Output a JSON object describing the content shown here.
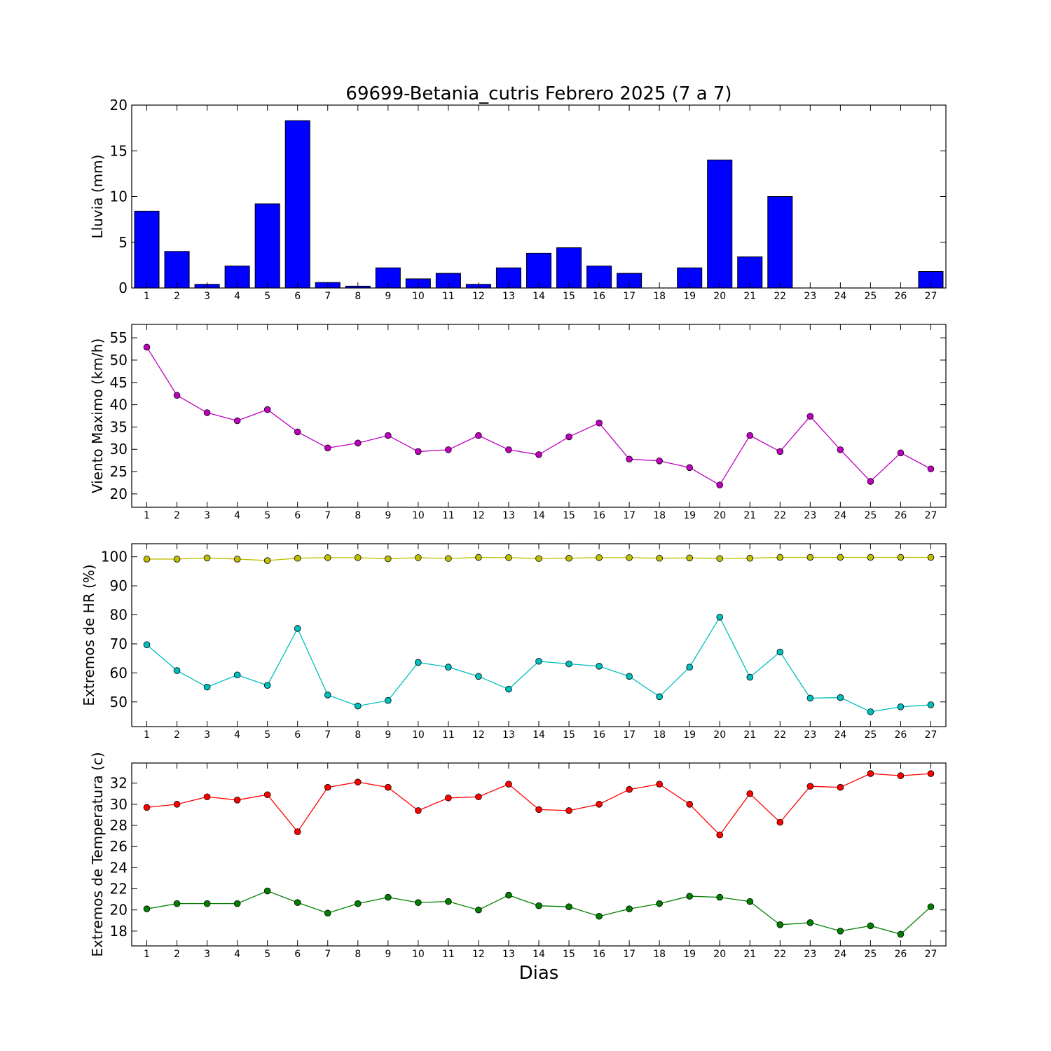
{
  "title": "69699-Betania_cutris Febrero 2025  (7 a 7)",
  "xlabel": "Dias",
  "chart_data": [
    {
      "type": "bar",
      "ylabel": "Lluvia (mm)",
      "x": [
        1,
        2,
        3,
        4,
        5,
        6,
        7,
        8,
        9,
        10,
        11,
        12,
        13,
        14,
        15,
        16,
        17,
        18,
        19,
        20,
        21,
        22,
        23,
        24,
        25,
        26,
        27
      ],
      "ylim": [
        0,
        20
      ],
      "yticks": [
        0,
        5,
        10,
        15,
        20
      ],
      "series": [
        {
          "color": "#0000ff",
          "values": [
            8.4,
            4.0,
            0.4,
            2.4,
            9.2,
            18.3,
            0.6,
            0.2,
            2.2,
            1.0,
            1.6,
            0.4,
            2.2,
            3.8,
            4.4,
            2.4,
            1.6,
            0.0,
            2.2,
            14.0,
            3.4,
            10.0,
            0.0,
            0.0,
            0.0,
            0.0,
            1.8
          ]
        }
      ]
    },
    {
      "type": "line",
      "ylabel": "Viento Maximo (km/h)",
      "x": [
        1,
        2,
        3,
        4,
        5,
        6,
        7,
        8,
        9,
        10,
        11,
        12,
        13,
        14,
        15,
        16,
        17,
        18,
        19,
        20,
        21,
        22,
        23,
        24,
        25,
        26,
        27
      ],
      "ylim": [
        17,
        58
      ],
      "yticks": [
        20,
        25,
        30,
        35,
        40,
        45,
        50,
        55
      ],
      "series": [
        {
          "color": "#bf00bf",
          "values": [
            52.9,
            42.1,
            38.2,
            36.4,
            38.9,
            33.9,
            30.3,
            31.4,
            33.1,
            29.5,
            29.9,
            33.1,
            29.9,
            28.8,
            32.8,
            35.9,
            27.8,
            27.4,
            25.9,
            22.0,
            33.1,
            29.5,
            37.4,
            29.9,
            22.8,
            29.2,
            25.6
          ]
        }
      ]
    },
    {
      "type": "line",
      "ylabel": "Extremos de HR (%)",
      "x": [
        1,
        2,
        3,
        4,
        5,
        6,
        7,
        8,
        9,
        10,
        11,
        12,
        13,
        14,
        15,
        16,
        17,
        18,
        19,
        20,
        21,
        22,
        23,
        24,
        25,
        26,
        27
      ],
      "ylim": [
        41.5,
        104.5
      ],
      "yticks": [
        50,
        60,
        70,
        80,
        90,
        100
      ],
      "series": [
        {
          "color": "#bfbf00",
          "values": [
            99.2,
            99.2,
            99.6,
            99.2,
            98.7,
            99.5,
            99.7,
            99.7,
            99.3,
            99.7,
            99.4,
            99.8,
            99.7,
            99.4,
            99.5,
            99.7,
            99.7,
            99.5,
            99.6,
            99.4,
            99.5,
            99.8,
            99.8,
            99.8,
            99.8,
            99.8,
            99.8
          ]
        },
        {
          "color": "#00bfbf",
          "values": [
            69.7,
            60.8,
            55.1,
            59.3,
            55.7,
            75.3,
            52.4,
            48.6,
            50.5,
            63.6,
            62.0,
            58.8,
            54.4,
            64.0,
            63.1,
            62.3,
            58.8,
            51.8,
            62.0,
            79.2,
            58.5,
            67.2,
            51.3,
            51.5,
            46.6,
            48.3,
            49.0
          ]
        }
      ]
    },
    {
      "type": "line",
      "ylabel": "Extremos de Temperatura (c)",
      "x": [
        1,
        2,
        3,
        4,
        5,
        6,
        7,
        8,
        9,
        10,
        11,
        12,
        13,
        14,
        15,
        16,
        17,
        18,
        19,
        20,
        21,
        22,
        23,
        24,
        25,
        26,
        27
      ],
      "ylim": [
        16.6,
        33.9
      ],
      "yticks": [
        18,
        20,
        22,
        24,
        26,
        28,
        30,
        32
      ],
      "series": [
        {
          "color": "#ff0000",
          "values": [
            29.7,
            30.0,
            30.7,
            30.4,
            30.9,
            27.4,
            31.6,
            32.1,
            31.6,
            29.4,
            30.6,
            30.7,
            31.9,
            29.5,
            29.4,
            30.0,
            31.4,
            31.9,
            30.0,
            27.1,
            31.0,
            28.3,
            31.7,
            31.6,
            32.9,
            32.7,
            32.9
          ]
        },
        {
          "color": "#007f00",
          "values": [
            20.1,
            20.6,
            20.6,
            20.6,
            21.8,
            20.7,
            19.7,
            20.6,
            21.2,
            20.7,
            20.8,
            20.0,
            21.4,
            20.4,
            20.3,
            19.4,
            20.1,
            20.6,
            21.3,
            21.2,
            20.8,
            18.6,
            18.8,
            18.0,
            18.5,
            17.7,
            20.3
          ]
        }
      ]
    }
  ]
}
